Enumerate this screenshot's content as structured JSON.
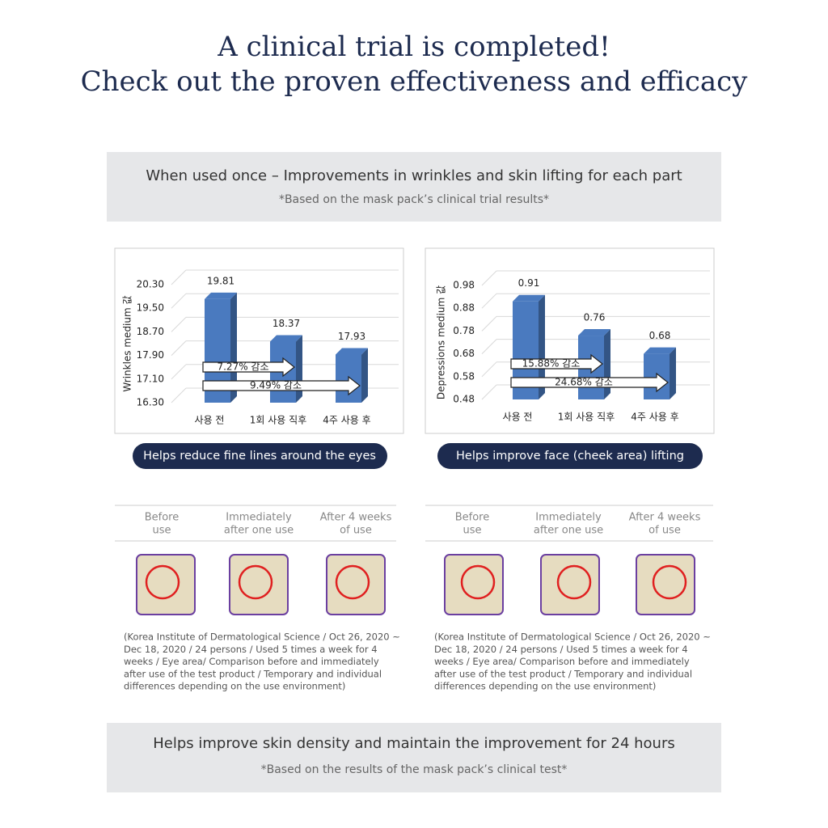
{
  "header": {
    "title_lines": [
      "A clinical trial is completed!",
      "Check out the proven effectiveness and efficacy"
    ]
  },
  "banner": {
    "title": "When used once – Improvements in wrinkles and skin lifting for each part",
    "note": "*Based on the mask pack’s clinical trial results*"
  },
  "chart_data": [
    {
      "type": "bar",
      "y_label": "Wrinkles medium 값",
      "categories": [
        "사용 전",
        "1회 사용 직후",
        "4주 사용 후"
      ],
      "values": [
        19.81,
        18.37,
        17.93
      ],
      "color": "#4a7abf",
      "ylim": [
        16.3,
        20.3
      ],
      "yticks": [
        {
          "value": 16.3,
          "label": "16.30"
        },
        {
          "value": 17.1,
          "label": "17.10"
        },
        {
          "value": 17.9,
          "label": "17.90"
        },
        {
          "value": 18.7,
          "label": "18.70"
        },
        {
          "value": 19.5,
          "label": "19.50"
        },
        {
          "value": 20.3,
          "label": "20.30"
        }
      ],
      "grid": true,
      "annotations": [
        "7.27% 감소",
        "9.49% 감소"
      ]
    },
    {
      "type": "bar",
      "y_label": "Depressions medium 값",
      "categories": [
        "사용 전",
        "1회 사용 직후",
        "4주 사용 후"
      ],
      "values": [
        0.91,
        0.76,
        0.68
      ],
      "color": "#4a7abf",
      "ylim": [
        0.48,
        0.98
      ],
      "yticks": [
        0.48,
        0.58,
        0.68,
        0.78,
        0.88,
        0.98
      ],
      "grid": true,
      "annotations": [
        "15.88% 감소",
        "24.68% 감소"
      ]
    }
  ],
  "captions": [
    "Helps reduce fine lines around the eyes",
    "Helps improve face (cheek area) lifting"
  ],
  "photo_panels": [
    {
      "columns": [
        [
          "Before",
          "use"
        ],
        [
          "Immediately",
          "after one use"
        ],
        [
          "After 4 weeks",
          "of use"
        ]
      ],
      "note_lines": [
        "(Korea Institute of Dermatological Science / Oct 26, 2020 ~",
        "Dec 18, 2020 / 24 persons / Used 5 times a week for 4",
        "weeks / Eye area/ Comparison before and immediately",
        "after use of the test product / Temporary and individual",
        "differences depending on the use environment)"
      ]
    },
    {
      "columns": [
        [
          "Before",
          "use"
        ],
        [
          "Immediately",
          "after one use"
        ],
        [
          "After 4 weeks",
          "of use"
        ]
      ],
      "note_lines": [
        "(Korea Institute of Dermatological Science / Oct 26, 2020 ~",
        "Dec 18, 2020 / 24 persons / Used 5 times a week for 4",
        "weeks / Eye area/ Comparison before and immediately",
        "after use of the test product / Temporary and individual",
        "differences depending on the use environment)"
      ]
    }
  ],
  "footer": {
    "title": "Helps improve skin density and maintain the improvement for 24 hours",
    "note": "*Based on the results of the mask pack’s clinical test*"
  }
}
